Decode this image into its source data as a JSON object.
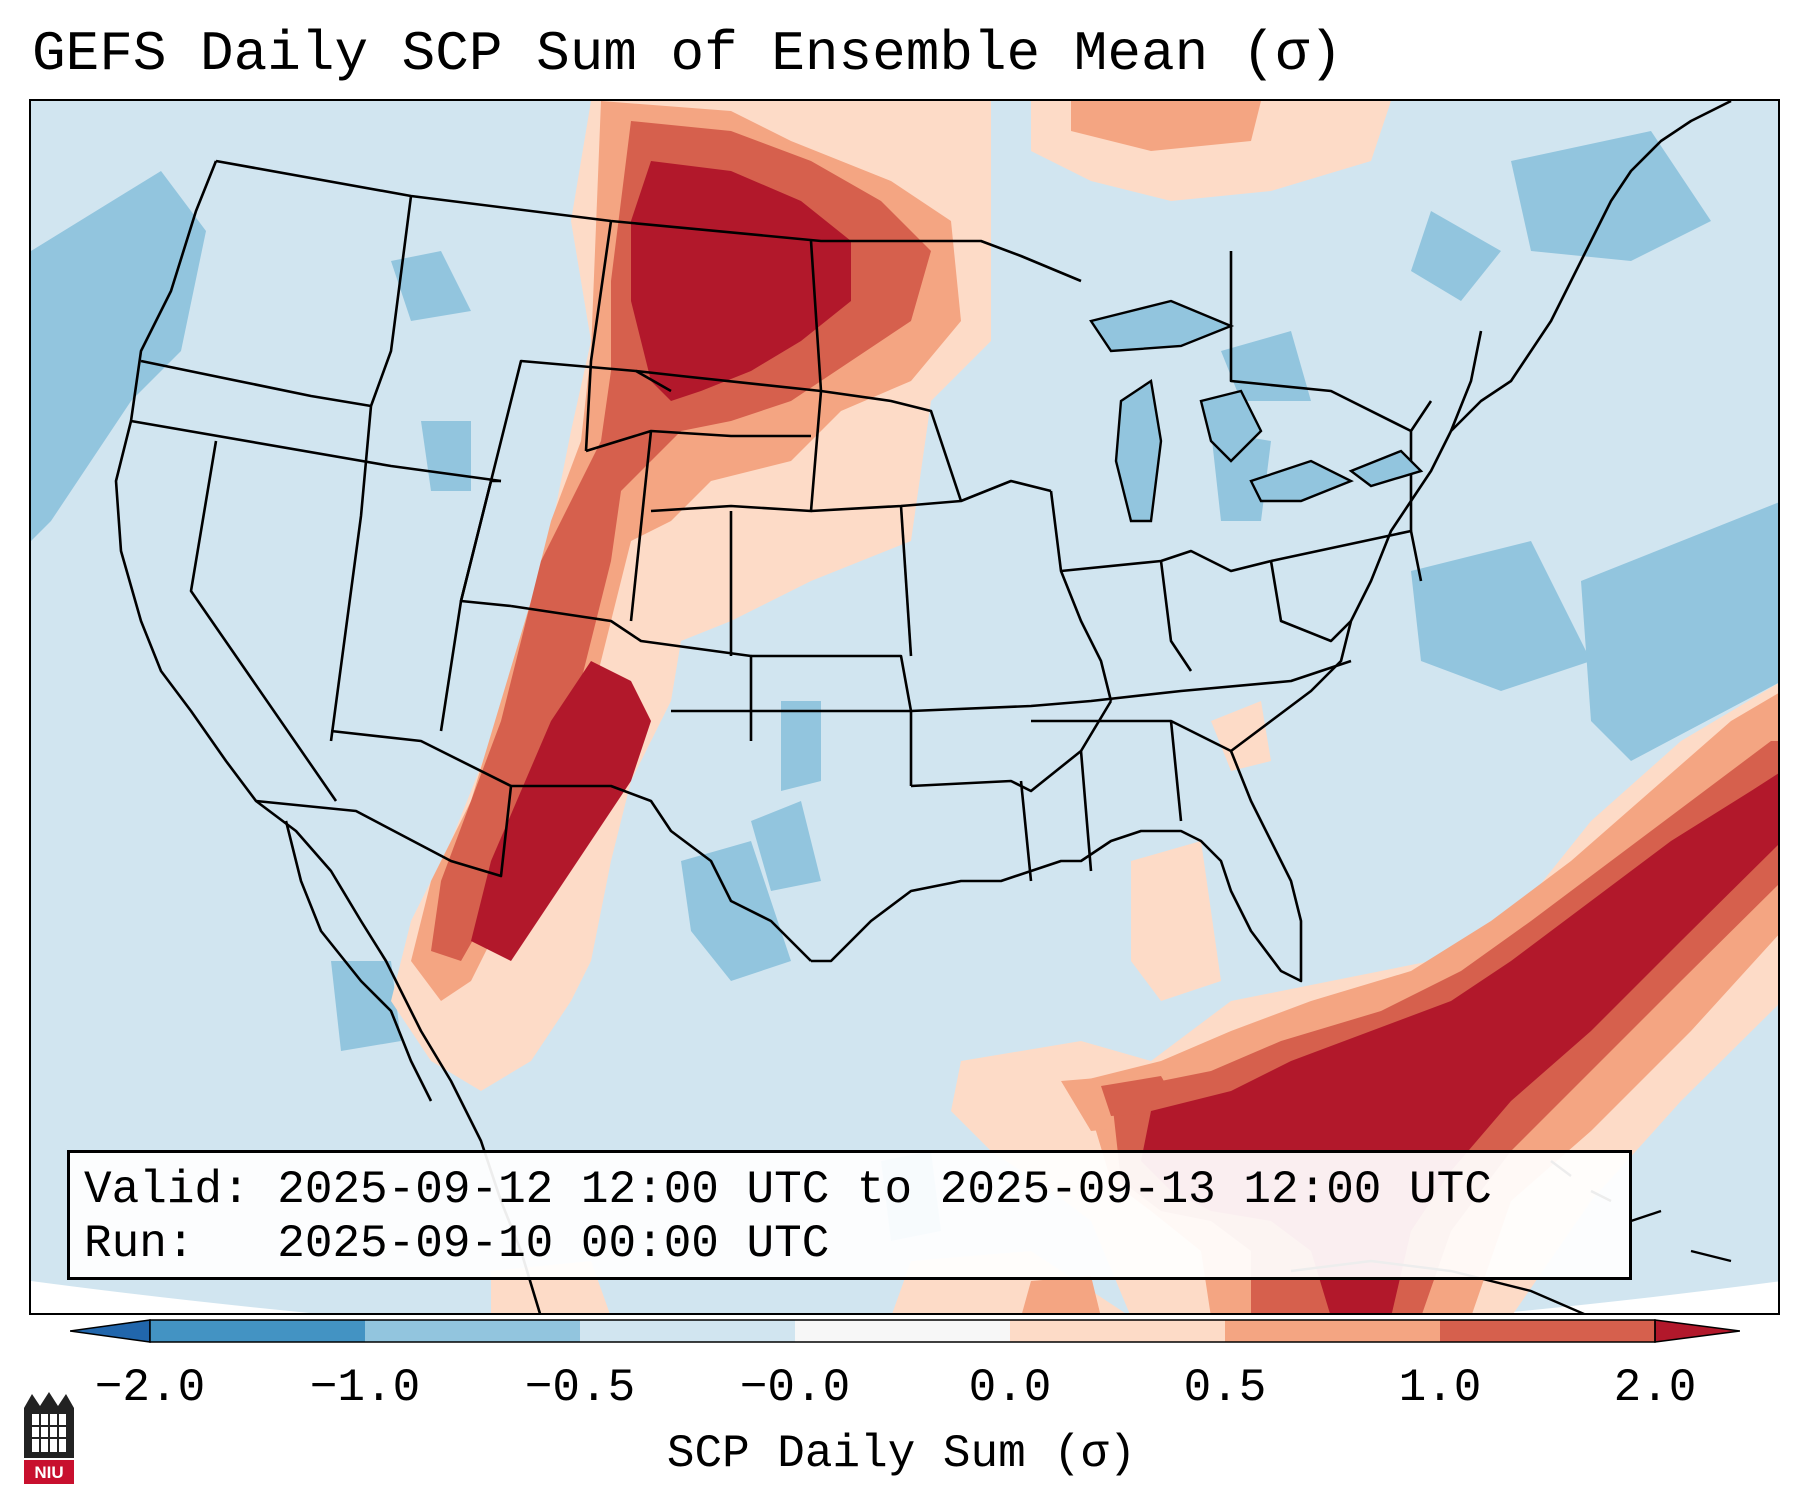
{
  "title": "GEFS Daily SCP Sum of Ensemble Mean (σ)",
  "info": {
    "valid_line": "Valid: 2025-09-12 12:00 UTC to 2025-09-13 12:00 UTC",
    "run_line": "Run:   2025-09-10 00:00 UTC"
  },
  "colorbar": {
    "label": "SCP Daily Sum (σ)",
    "ticks": [
      "−2.0",
      "−1.0",
      "−0.5",
      "−0.0",
      "0.0",
      "0.5",
      "1.0",
      "2.0"
    ],
    "colors": [
      "#4393c3",
      "#92c5de",
      "#d1e5f0",
      "#f7f7f7",
      "#fddbc7",
      "#f4a582",
      "#d6604d",
      "#b2182b"
    ],
    "under_color": "#2166ac",
    "over_color": "#b2182b"
  },
  "logo": {
    "text": "NIU"
  }
}
